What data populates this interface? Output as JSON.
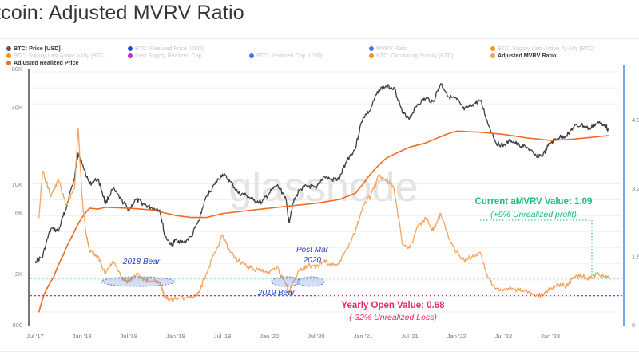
{
  "header": {
    "title": "tcoin: Adjusted MVRV Ratio"
  },
  "legend": [
    {
      "label": "BTC: Price [USD]",
      "color": "#555555",
      "active": true
    },
    {
      "label": "BTC: Realized Price [USD]",
      "color": "#1650d6",
      "active": false
    },
    {
      "label": "-",
      "color": "",
      "active": false
    },
    {
      "label": "MVRV Ratio",
      "color": "#3a7ae8",
      "active": false
    },
    {
      "label": "BTC: Supply Last Active 7y-10y [BTC]",
      "color": "#f7931a",
      "active": false
    },
    {
      "label": "BTC: Supply Last Active >10y [BTC]",
      "color": "#f7931a",
      "active": false
    },
    {
      "label": "Inert Supply Realized Cap",
      "color": "#c72bd6",
      "active": false
    },
    {
      "label": "BTC: Realized Cap [USD]",
      "color": "#3a7ae8",
      "active": false
    },
    {
      "label": "BTC: Circulating Supply [BTC]",
      "color": "#f7931a",
      "active": false
    },
    {
      "label": "Adjusted MVRV Ratio",
      "color": "#f7a35c",
      "active": true
    },
    {
      "label": "Adjusted Realized Price",
      "color": "#f26b1d",
      "active": true
    }
  ],
  "watermark": "glassnode",
  "chart_data": {
    "type": "line",
    "title": "Bitcoin: Adjusted MVRV Ratio",
    "x_ticks": [
      "Jul '17",
      "Jan '18",
      "Jul '18",
      "Jan '19",
      "Jul '19",
      "Jan '20",
      "Jul '20",
      "Jan '21",
      "Jul '21",
      "Jan '22",
      "Jul '22",
      "Jan '23"
    ],
    "x_range": [
      2017.5,
      2023.75
    ],
    "left_axis": {
      "scale": "log",
      "ticks": [
        "800",
        "2K",
        "6K",
        "10K",
        "40K",
        "80K"
      ],
      "tick_values": [
        800,
        2000,
        6000,
        10000,
        40000,
        80000
      ],
      "range": [
        800,
        80000
      ],
      "unit": "USD"
    },
    "right_axis": {
      "scale": "linear",
      "ticks": [
        "0",
        "1.6",
        "3.2",
        "4.8"
      ],
      "tick_values": [
        0,
        1.6,
        3.2,
        4.8
      ],
      "range": [
        0,
        6.0
      ]
    },
    "grid": true,
    "legend_position": "top",
    "series": [
      {
        "name": "BTC: Price [USD]",
        "axis": "left",
        "color": "#3d3d3d",
        "x": [
          2017.5,
          2017.58,
          2017.67,
          2017.75,
          2017.83,
          2017.92,
          2017.96,
          2018.0,
          2018.08,
          2018.17,
          2018.25,
          2018.33,
          2018.42,
          2018.5,
          2018.58,
          2018.67,
          2018.75,
          2018.83,
          2018.88,
          2018.96,
          2019.0,
          2019.08,
          2019.17,
          2019.25,
          2019.33,
          2019.42,
          2019.5,
          2019.58,
          2019.67,
          2019.75,
          2019.83,
          2019.92,
          2020.0,
          2020.08,
          2020.17,
          2020.21,
          2020.25,
          2020.33,
          2020.42,
          2020.5,
          2020.58,
          2020.67,
          2020.75,
          2020.83,
          2020.92,
          2021.0,
          2021.08,
          2021.17,
          2021.25,
          2021.33,
          2021.42,
          2021.5,
          2021.58,
          2021.67,
          2021.75,
          2021.83,
          2021.92,
          2022.0,
          2022.08,
          2022.17,
          2022.25,
          2022.33,
          2022.42,
          2022.5,
          2022.58,
          2022.67,
          2022.75,
          2022.83,
          2022.92,
          2023.0,
          2023.08,
          2023.17,
          2023.25,
          2023.33,
          2023.42,
          2023.5,
          2023.58,
          2023.62
        ],
        "y": [
          2500,
          2700,
          4500,
          4300,
          6400,
          11000,
          17500,
          14500,
          10000,
          11000,
          7000,
          9200,
          7500,
          6300,
          7600,
          6900,
          6500,
          6300,
          4000,
          3300,
          3700,
          3500,
          3900,
          5200,
          8000,
          10000,
          12000,
          10500,
          8500,
          8200,
          7500,
          7200,
          8500,
          9800,
          8000,
          5000,
          7000,
          9200,
          9700,
          9200,
          11500,
          10800,
          11000,
          15500,
          19000,
          33000,
          38000,
          55000,
          58000,
          57000,
          36000,
          33000,
          42000,
          47000,
          44000,
          61000,
          48000,
          46000,
          38000,
          42000,
          45000,
          30000,
          21000,
          20000,
          22000,
          20000,
          19500,
          16800,
          16800,
          21000,
          23000,
          24000,
          28000,
          29000,
          27000,
          30000,
          29500,
          26500
        ]
      },
      {
        "name": "Adjusted Realized Price",
        "axis": "left",
        "color": "#f26b1d",
        "x": [
          2017.54,
          2017.6,
          2017.7,
          2017.8,
          2017.9,
          2018.0,
          2018.08,
          2018.17,
          2018.25,
          2018.5,
          2018.75,
          2019.0,
          2019.17,
          2019.33,
          2019.5,
          2019.75,
          2020.0,
          2020.25,
          2020.5,
          2020.75,
          2020.92,
          2021.0,
          2021.08,
          2021.25,
          2021.5,
          2021.67,
          2021.92,
          2022.0,
          2022.25,
          2022.5,
          2022.75,
          2023.0,
          2023.25,
          2023.5,
          2023.62
        ],
        "y": [
          1000,
          1400,
          1900,
          2800,
          4000,
          5500,
          6500,
          6400,
          6600,
          6500,
          6300,
          5700,
          5500,
          5500,
          5900,
          6200,
          6500,
          6800,
          7100,
          7600,
          8500,
          10000,
          12000,
          16000,
          19500,
          21000,
          25000,
          26000,
          25500,
          24500,
          23000,
          22000,
          22500,
          23500,
          24000
        ]
      },
      {
        "name": "Adjusted MVRV Ratio",
        "axis": "right",
        "color": "#f7a35c",
        "x": [
          2017.54,
          2017.58,
          2017.67,
          2017.75,
          2017.83,
          2017.92,
          2017.96,
          2018.0,
          2018.04,
          2018.08,
          2018.17,
          2018.25,
          2018.33,
          2018.42,
          2018.5,
          2018.58,
          2018.67,
          2018.75,
          2018.83,
          2018.88,
          2018.96,
          2019.0,
          2019.17,
          2019.25,
          2019.33,
          2019.42,
          2019.5,
          2019.58,
          2019.67,
          2019.75,
          2019.83,
          2019.92,
          2020.0,
          2020.08,
          2020.17,
          2020.21,
          2020.25,
          2020.33,
          2020.42,
          2020.5,
          2020.58,
          2020.67,
          2020.75,
          2020.83,
          2020.92,
          2021.0,
          2021.08,
          2021.17,
          2021.25,
          2021.33,
          2021.42,
          2021.5,
          2021.58,
          2021.67,
          2021.75,
          2021.83,
          2021.92,
          2022.0,
          2022.08,
          2022.17,
          2022.25,
          2022.33,
          2022.42,
          2022.5,
          2022.58,
          2022.67,
          2022.75,
          2022.83,
          2022.92,
          2023.0,
          2023.08,
          2023.17,
          2023.25,
          2023.33,
          2023.42,
          2023.5,
          2023.58,
          2023.62
        ],
        "y": [
          2.5,
          3.6,
          3.0,
          3.4,
          2.8,
          3.2,
          4.6,
          3.0,
          2.2,
          1.7,
          1.6,
          1.2,
          1.5,
          1.1,
          1.0,
          1.2,
          1.05,
          1.0,
          1.0,
          0.65,
          0.6,
          0.62,
          0.65,
          0.75,
          1.2,
          1.7,
          2.1,
          1.7,
          1.5,
          1.4,
          1.3,
          1.25,
          1.2,
          1.35,
          1.0,
          0.75,
          1.0,
          1.3,
          1.4,
          1.35,
          1.5,
          1.4,
          1.45,
          1.8,
          2.2,
          2.8,
          3.0,
          3.5,
          3.4,
          3.2,
          1.9,
          1.8,
          2.3,
          2.5,
          2.2,
          2.6,
          2.0,
          1.7,
          1.5,
          1.6,
          1.7,
          1.1,
          0.85,
          0.8,
          0.85,
          0.8,
          0.77,
          0.7,
          0.68,
          0.85,
          0.95,
          0.9,
          1.1,
          1.15,
          1.08,
          1.18,
          1.12,
          1.09
        ]
      }
    ],
    "reference_lines": [
      {
        "name": "Current aMVRV Value",
        "axis": "right",
        "value": 1.09,
        "color": "#1bbf7a",
        "style": "dotted"
      },
      {
        "name": "Yearly Open Value",
        "axis": "right",
        "value": 0.68,
        "color": "#f0266a",
        "style": "dotted"
      }
    ],
    "annotations": [
      {
        "text": "Current aMVRV Value: 1.09",
        "color": "#1bbf7a",
        "bold": true
      },
      {
        "text": "(+9% Unrealized profit)",
        "color": "#1bbf7a",
        "italic": true
      },
      {
        "text": "Yearly Open Value: 0.68",
        "color": "#f0266a",
        "bold": true
      },
      {
        "text": "(-32% Unrealized Loss)",
        "color": "#f0266a",
        "italic": true
      },
      {
        "text": "2018 Bear",
        "color": "#2a44c8",
        "italic": true,
        "x_range": [
          2018.25,
          2018.75
        ]
      },
      {
        "text": "2019 Bear",
        "color": "#2a44c8",
        "italic": true,
        "x_range": [
          2019.83,
          2020.0
        ]
      },
      {
        "text": "Post Mar 2020",
        "color": "#2a44c8",
        "italic": true,
        "x_range": [
          2020.17,
          2020.38
        ]
      }
    ]
  }
}
